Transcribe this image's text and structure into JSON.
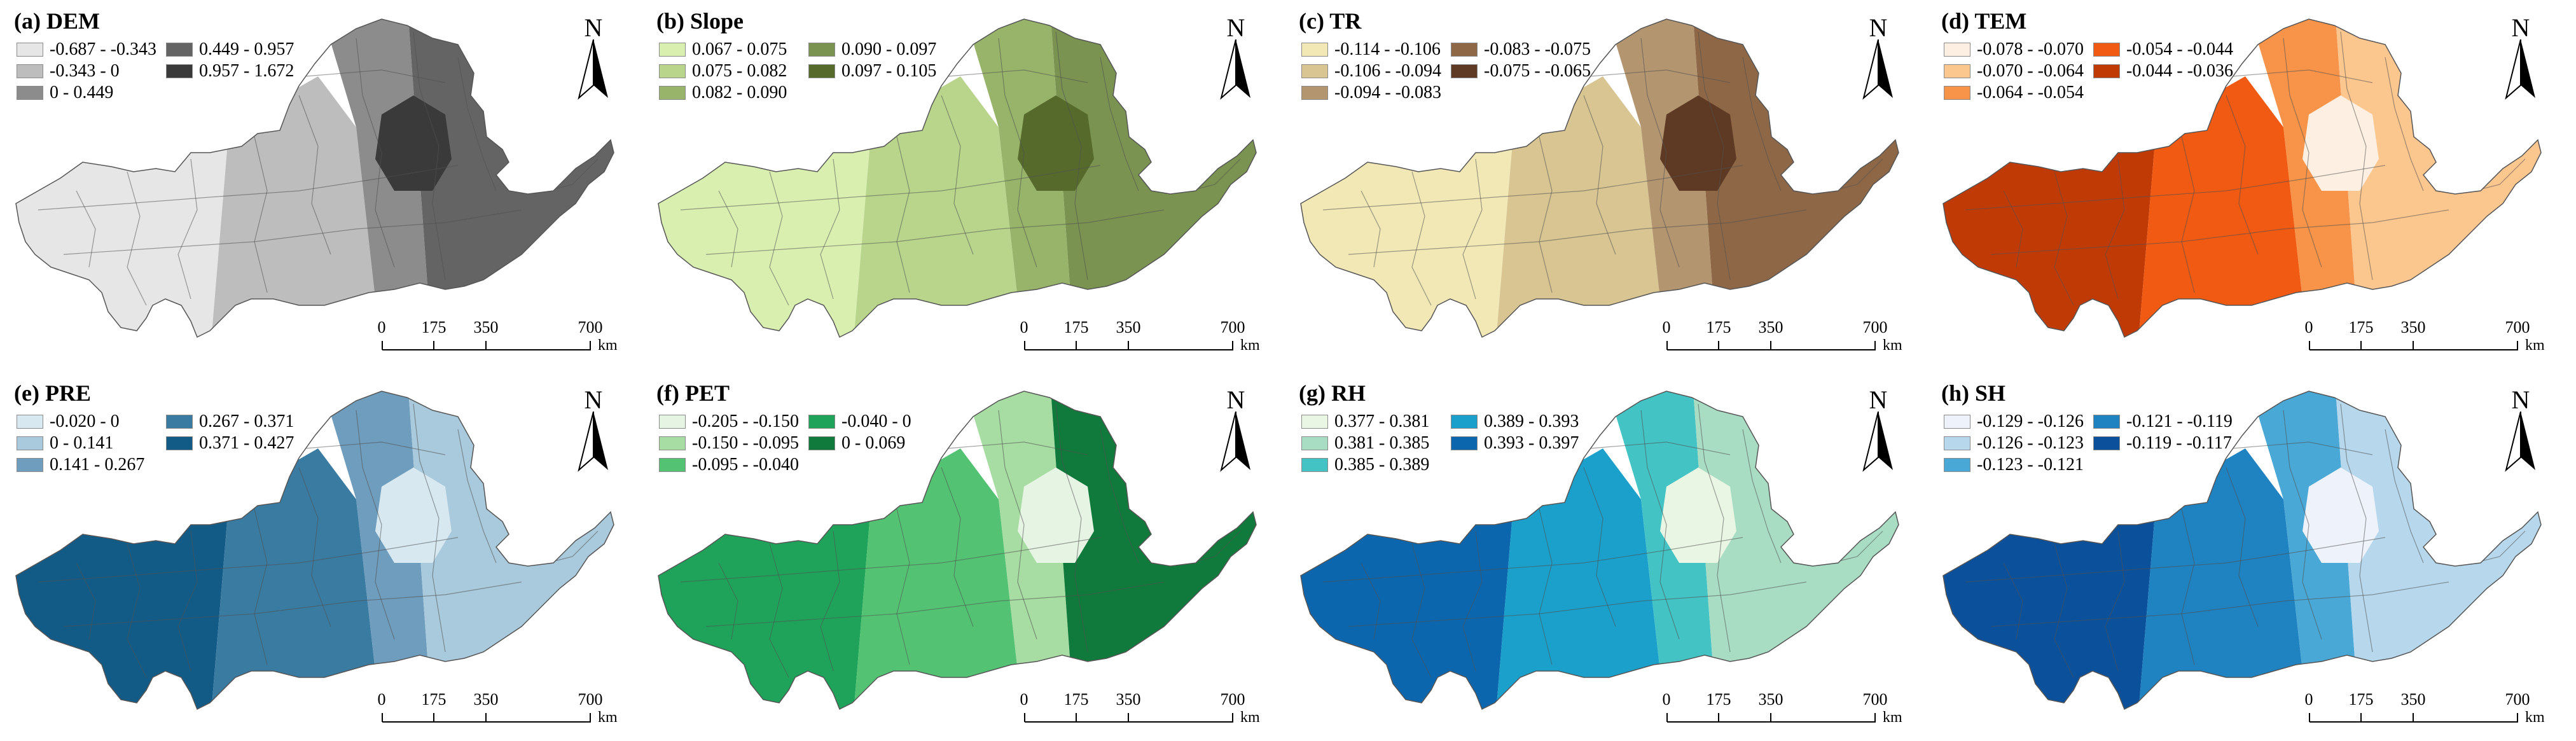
{
  "panels": [
    {
      "title": "(a) DEM",
      "legend": [
        {
          "label": "-0.687 - -0.343",
          "color": "#e6e6e6"
        },
        {
          "label": "-0.343 - 0",
          "color": "#bdbdbd"
        },
        {
          "label": "0 - 0.449",
          "color": "#8c8c8c"
        },
        {
          "label": "0.449 - 0.957",
          "color": "#646464"
        },
        {
          "label": "0.957 - 1.672",
          "color": "#3a3a3a"
        }
      ],
      "map_fills": {
        "west": "#e6e6e6",
        "middle": "#bdbdbd",
        "center": "#8c8c8c",
        "east": "#646464",
        "core": "#3a3a3a"
      }
    },
    {
      "title": "(b) Slope",
      "legend": [
        {
          "label": "0.067 - 0.075",
          "color": "#d9efb0"
        },
        {
          "label": "0.075 - 0.082",
          "color": "#b9d58c"
        },
        {
          "label": "0.082 - 0.090",
          "color": "#98b46a"
        },
        {
          "label": "0.090 - 0.097",
          "color": "#7a9350"
        },
        {
          "label": "0.097 - 0.105",
          "color": "#566a2c"
        }
      ],
      "map_fills": {
        "west": "#d9efb0",
        "middle": "#b9d58c",
        "center": "#98b46a",
        "east": "#7a9350",
        "core": "#566a2c"
      }
    },
    {
      "title": "(c) TR",
      "legend": [
        {
          "label": "-0.114 - -0.106",
          "color": "#f1e8b6"
        },
        {
          "label": "-0.106 - -0.094",
          "color": "#d8c592"
        },
        {
          "label": "-0.094 - -0.083",
          "color": "#b39570"
        },
        {
          "label": "-0.083 - -0.075",
          "color": "#8e6746"
        },
        {
          "label": "-0.075 - -0.065",
          "color": "#5e3a24"
        }
      ],
      "map_fills": {
        "west": "#f1e8b6",
        "middle": "#d8c592",
        "center": "#b39570",
        "east": "#8e6746",
        "core": "#5e3a24"
      }
    },
    {
      "title": "(d) TEM",
      "legend": [
        {
          "label": "-0.078 - -0.070",
          "color": "#fdf0e2"
        },
        {
          "label": "-0.070 - -0.064",
          "color": "#fcc68f"
        },
        {
          "label": "-0.064 - -0.054",
          "color": "#f8944a"
        },
        {
          "label": "-0.054 - -0.044",
          "color": "#f05a12"
        },
        {
          "label": "-0.044 - -0.036",
          "color": "#c03a06"
        }
      ],
      "map_fills": {
        "west": "#c03a06",
        "middle": "#f05a12",
        "center": "#f8944a",
        "east": "#fcc68f",
        "core": "#fdf0e2"
      }
    },
    {
      "title": "(e) PRE",
      "legend": [
        {
          "label": "-0.020 - 0",
          "color": "#d7e8f1"
        },
        {
          "label": "0 - 0.141",
          "color": "#a9c9dc"
        },
        {
          "label": "0.141 - 0.267",
          "color": "#6f9dbd"
        },
        {
          "label": "0.267 - 0.371",
          "color": "#3a7ba2"
        },
        {
          "label": "0.371 - 0.427",
          "color": "#135b87"
        }
      ],
      "map_fills": {
        "west": "#135b87",
        "middle": "#3a7ba2",
        "center": "#6f9dbd",
        "east": "#a9c9dc",
        "core": "#d7e8f1"
      }
    },
    {
      "title": "(f) PET",
      "legend": [
        {
          "label": "-0.205 - -0.150",
          "color": "#e6f4e4"
        },
        {
          "label": "-0.150 - -0.095",
          "color": "#a7dca2"
        },
        {
          "label": "-0.095 - -0.040",
          "color": "#53c373"
        },
        {
          "label": "-0.040 - 0",
          "color": "#1fa35a"
        },
        {
          "label": "0 - 0.069",
          "color": "#0f7a3b"
        }
      ],
      "map_fills": {
        "west": "#1fa35a",
        "middle": "#53c373",
        "center": "#a7dca2",
        "east": "#0f7a3b",
        "core": "#e6f4e4"
      }
    },
    {
      "title": "(g) RH",
      "legend": [
        {
          "label": "0.377 - 0.381",
          "color": "#eaf6e4"
        },
        {
          "label": "0.381 - 0.385",
          "color": "#a8ddc4"
        },
        {
          "label": "0.385 - 0.389",
          "color": "#44c3c5"
        },
        {
          "label": "0.389 - 0.393",
          "color": "#1aa0cb"
        },
        {
          "label": "0.393 - 0.397",
          "color": "#0b66ad"
        }
      ],
      "map_fills": {
        "west": "#0b66ad",
        "middle": "#1aa0cb",
        "center": "#44c3c5",
        "east": "#a8ddc4",
        "core": "#eaf6e4"
      }
    },
    {
      "title": "(h) SH",
      "legend": [
        {
          "label": "-0.129 - -0.126",
          "color": "#eef2fb"
        },
        {
          "label": "-0.126 - -0.123",
          "color": "#b7d8ec"
        },
        {
          "label": "-0.123 - -0.121",
          "color": "#49a8d6"
        },
        {
          "label": "-0.121 - -0.119",
          "color": "#1f82c1"
        },
        {
          "label": "-0.119 - -0.117",
          "color": "#0b509a"
        }
      ],
      "map_fills": {
        "west": "#0b509a",
        "middle": "#1f82c1",
        "center": "#49a8d6",
        "east": "#b7d8ec",
        "core": "#eef2fb"
      }
    }
  ],
  "north_label": "N",
  "scale": {
    "ticks": [
      "0",
      "175",
      "350",
      "700"
    ],
    "unit": "km"
  }
}
